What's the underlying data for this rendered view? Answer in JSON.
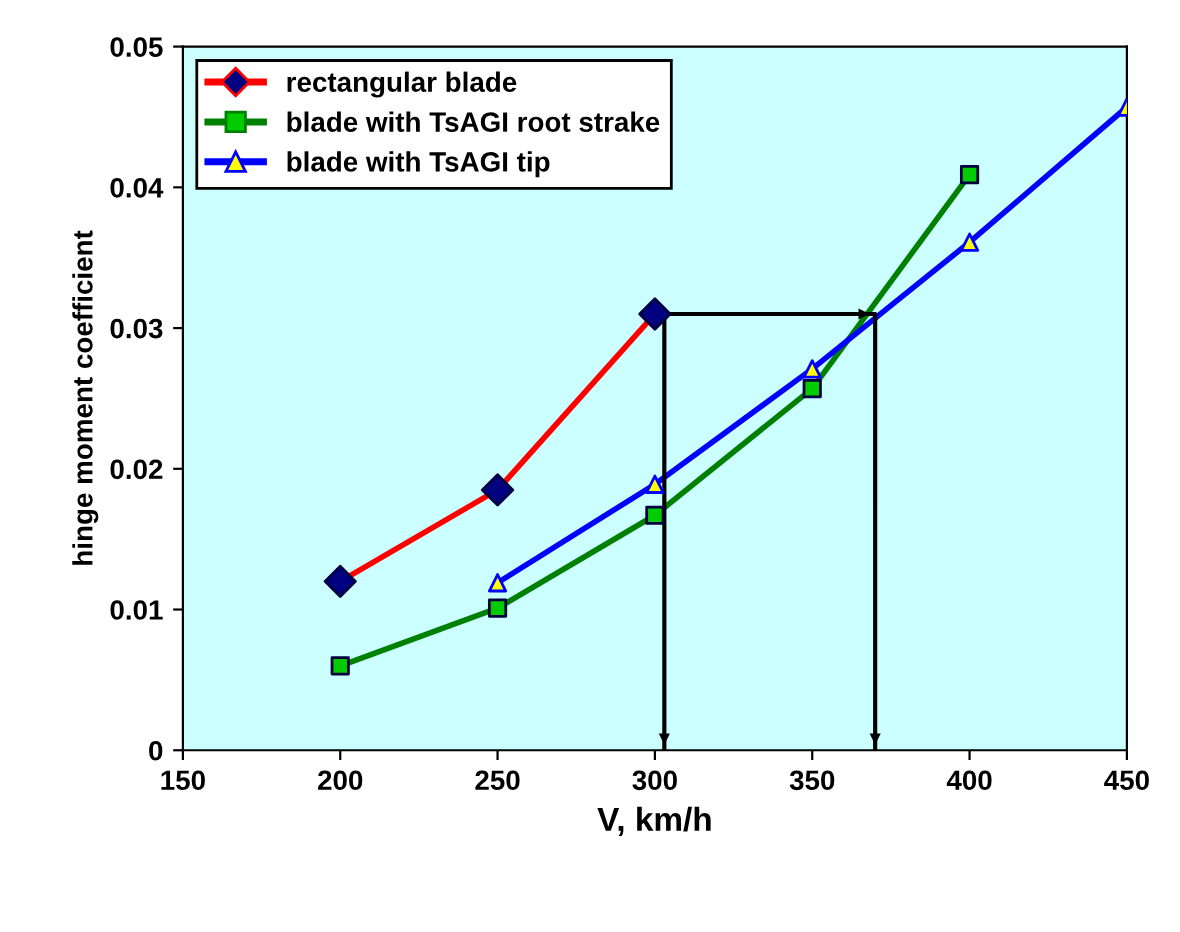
{
  "chart_data": {
    "type": "line",
    "xlabel": "V, km/h",
    "ylabel": "hinge moment coefficient",
    "xlim": [
      150,
      450
    ],
    "xticks": [
      150,
      200,
      250,
      300,
      350,
      400,
      450
    ],
    "ylim": [
      0,
      0.05
    ],
    "yticks": [
      0,
      0.01,
      0.02,
      0.03,
      0.04,
      0.05
    ],
    "grid": false,
    "legend": "top left",
    "line_style": "solid",
    "series": [
      {
        "name": "rectangular blade",
        "color": "#ff0000",
        "marker": "diamond",
        "x": [
          200,
          250,
          300
        ],
        "values": [
          0.012,
          0.0185,
          0.031
        ],
        "colors": [
          "#000080",
          "#000080",
          "#000080"
        ]
      },
      {
        "name": "blade with TsAGI root strake",
        "color": "#008000",
        "marker": "square",
        "x": [
          200,
          250,
          300,
          350,
          400
        ],
        "values": [
          0.006,
          0.0101,
          0.0167,
          0.0257,
          0.0409
        ],
        "colors": [
          "#00cc00",
          "#00cc00",
          "#00cc00",
          "#00cc00",
          "#00cc00"
        ]
      },
      {
        "name": "blade with TsAGI tip",
        "color": "#0000ff",
        "marker": "triangle",
        "x": [
          250,
          300,
          350,
          400,
          450
        ],
        "values": [
          0.0119,
          0.0189,
          0.0271,
          0.0361,
          0.0457
        ],
        "colors": [
          "#ffff00",
          "#ffff00",
          "#ffff00",
          "#ffff00",
          "#ffff00"
        ]
      },
      {
        "color": "#000000",
        "marker": "none",
        "x": [
          303,
          303,
          370,
          370
        ],
        "values": [
          0,
          0.031,
          0.031,
          0
        ]
      }
    ]
  }
}
